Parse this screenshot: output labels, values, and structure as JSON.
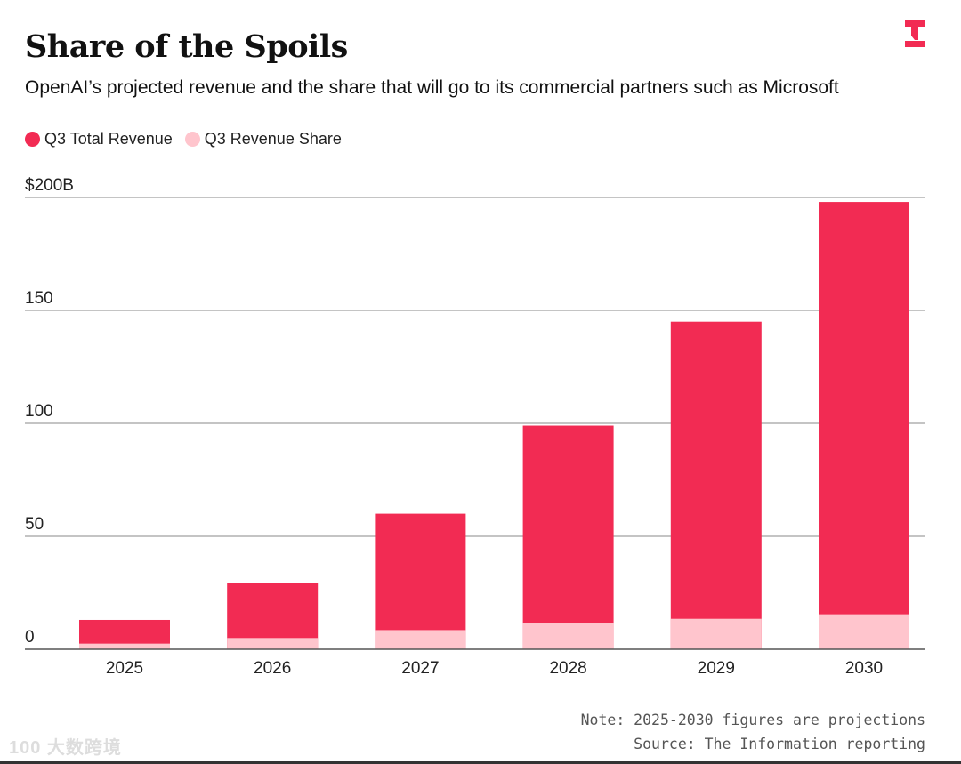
{
  "header": {
    "title": "Share of the Spoils",
    "subtitle": "OpenAI’s projected revenue and the share that will go to its commercial partners such as Microsoft",
    "logo_text": "T"
  },
  "colors": {
    "total": "#F22B53",
    "share": "#FFC5CD",
    "grid": "#888888",
    "axis": "#555555"
  },
  "chart_data": {
    "type": "bar",
    "stacked": "overlay",
    "title": "Share of the Spoils",
    "subtitle": "OpenAI’s projected revenue and the share that will go to its commercial partners such as Microsoft",
    "categories": [
      "2025",
      "2026",
      "2027",
      "2028",
      "2029",
      "2030"
    ],
    "series": [
      {
        "name": "Q3 Total Revenue",
        "values": [
          13,
          29.5,
          60,
          99,
          145,
          198
        ]
      },
      {
        "name": "Q3 Revenue Share",
        "values": [
          2.5,
          5,
          8.5,
          11.5,
          13.5,
          15.5
        ]
      }
    ],
    "yticks": [
      0,
      50,
      100,
      150,
      200
    ],
    "ytick_labels": [
      "0",
      "50",
      "100",
      "150",
      "$200B"
    ],
    "ylim": [
      0,
      200
    ],
    "xlabel": "",
    "ylabel": "",
    "grid": true,
    "legend_position": "top-left"
  },
  "footer": {
    "note": "Note: 2025-2030 figures are projections",
    "source": "Source: The Information reporting",
    "watermark": "大数跨境"
  }
}
